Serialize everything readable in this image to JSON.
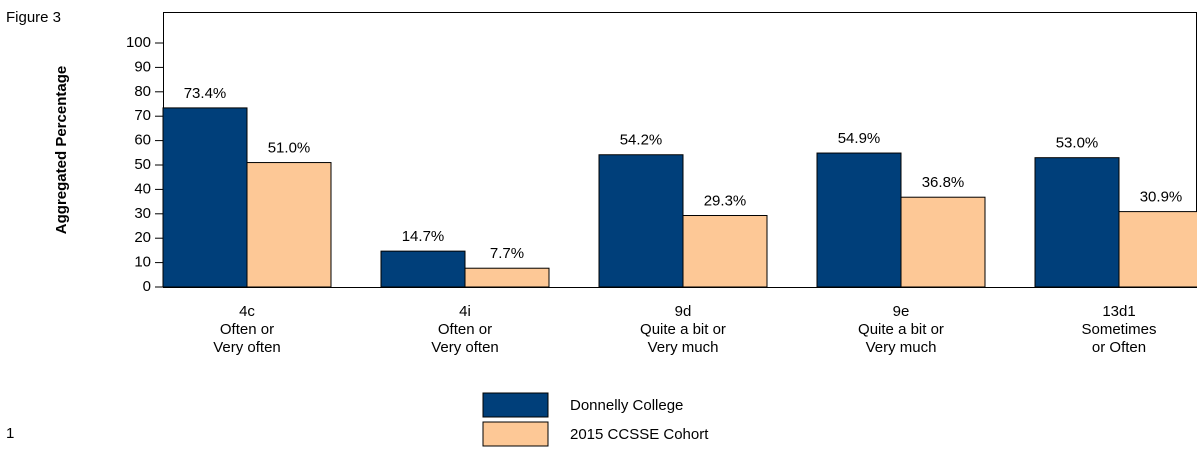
{
  "figure_label": "Figure 3",
  "page_number": "1",
  "chart_data": {
    "type": "bar",
    "ylabel": "Aggregated Percentage",
    "categories": [
      [
        "4c",
        "Often or",
        "Very often"
      ],
      [
        "4i",
        "Often or",
        "Very often"
      ],
      [
        "9d",
        "Quite a bit or",
        "Very much"
      ],
      [
        "9e",
        "Quite a bit or",
        "Very much"
      ],
      [
        "13d1",
        "Sometimes",
        "or Often"
      ]
    ],
    "series": [
      {
        "name": "Donnelly College",
        "color": "#003f7a",
        "values": [
          73.4,
          14.7,
          54.2,
          54.9,
          53.0
        ],
        "value_labels": [
          "73.4%",
          "14.7%",
          "54.2%",
          "54.9%",
          "53.0%"
        ]
      },
      {
        "name": "2015 CCSSE Cohort",
        "color": "#fdc896",
        "values": [
          51.0,
          7.7,
          29.3,
          36.8,
          30.9
        ],
        "value_labels": [
          "51.0%",
          "7.7%",
          "29.3%",
          "36.8%",
          "30.9%"
        ]
      }
    ],
    "ylim": [
      0,
      100
    ],
    "yticks": [
      0,
      10,
      20,
      30,
      40,
      50,
      60,
      70,
      80,
      90,
      100
    ],
    "legend": "bottom"
  }
}
